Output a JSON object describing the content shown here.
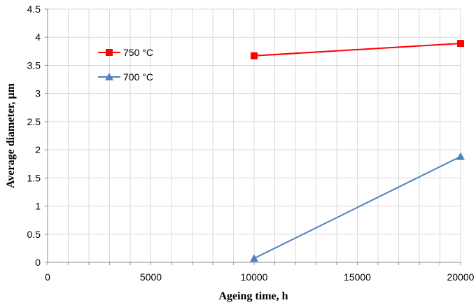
{
  "chart_data": {
    "type": "line",
    "xlabel": "Ageing time, h",
    "ylabel": "Average diameter, μm",
    "xlim": [
      0,
      20000
    ],
    "ylim": [
      0,
      4.5
    ],
    "x_ticks": [
      "0",
      "5000",
      "10000",
      "15000",
      "20000"
    ],
    "y_ticks": [
      "0",
      "0.5",
      "1",
      "1.5",
      "2",
      "2.5",
      "3",
      "3.5",
      "4",
      "4.5"
    ],
    "x_minor_step": 1000,
    "y_step": 0.5,
    "grid": true,
    "legend_position": "top-left",
    "series": [
      {
        "name": "750 °C",
        "color": "#FF0000",
        "marker": "square",
        "x": [
          10000,
          20000
        ],
        "y": [
          3.67,
          3.89
        ]
      },
      {
        "name": "700 °C",
        "color": "#4F81BD",
        "marker": "triangle",
        "x": [
          10000,
          20000
        ],
        "y": [
          0.07,
          1.88
        ]
      }
    ]
  }
}
